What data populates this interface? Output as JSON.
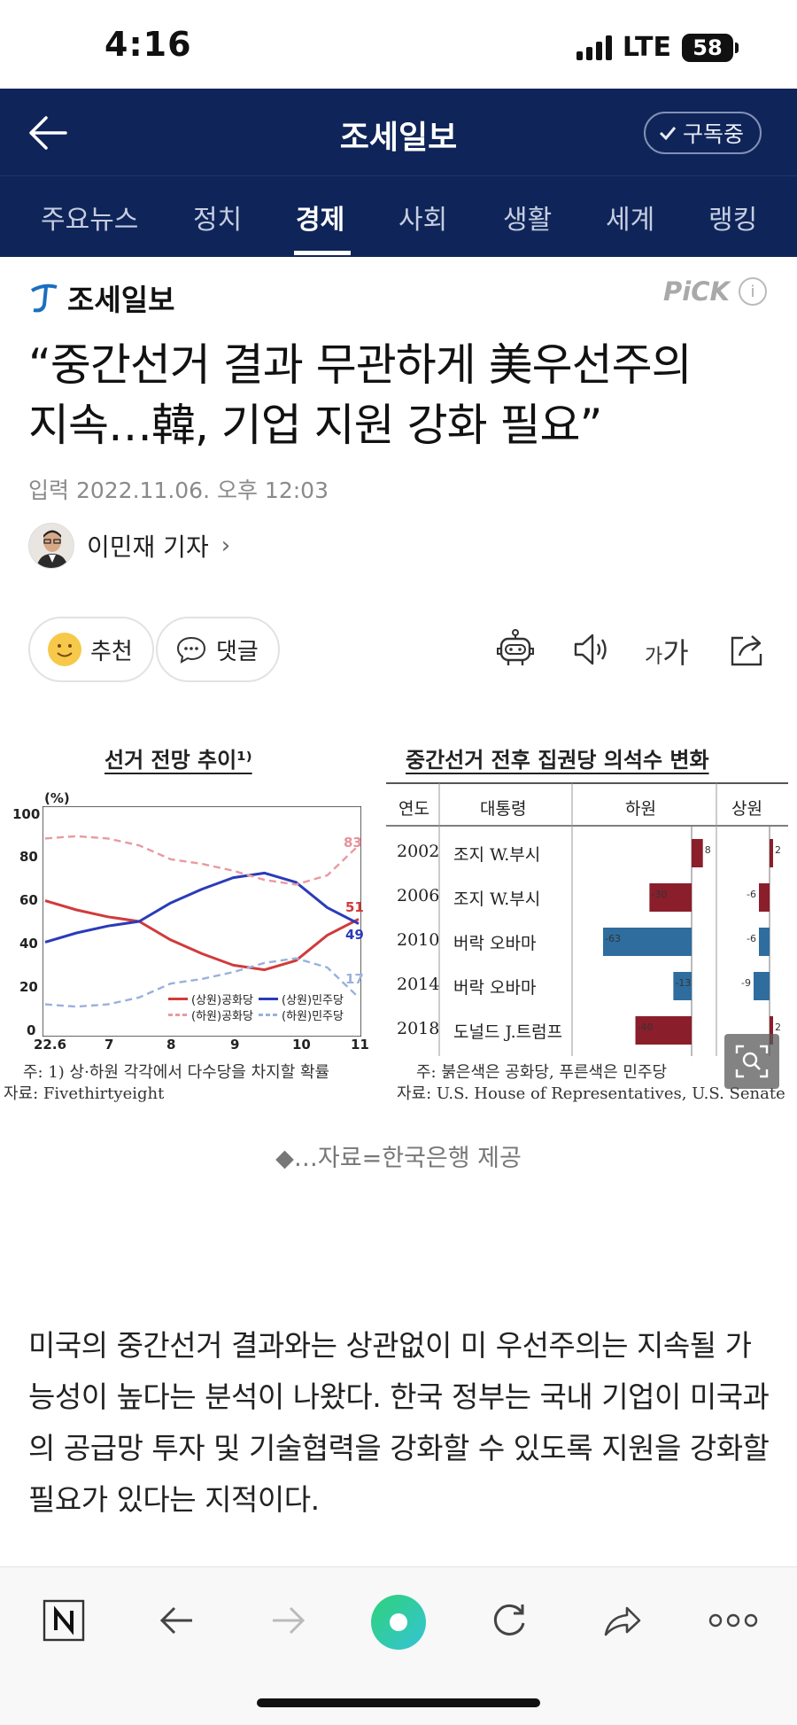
{
  "status": {
    "time": "4:16",
    "network": "LTE",
    "battery": "58"
  },
  "header": {
    "title": "조세일보",
    "subscribe_label": "구독중"
  },
  "tabs": [
    {
      "label": "주요뉴스"
    },
    {
      "label": "정치"
    },
    {
      "label": "경제"
    },
    {
      "label": "사회"
    },
    {
      "label": "생활"
    },
    {
      "label": "세계"
    },
    {
      "label": "랭킹"
    }
  ],
  "active_tab": "경제",
  "article": {
    "press": "조세일보",
    "pick_label": "PiCK",
    "headline_line1": "“중간선거 결과 무관하게 美우선주의",
    "headline_line2": "지속…韓, 기업 지원 강화 필요”",
    "date": "입력 2022.11.06. 오후 12:03",
    "reporter": "이민재 기자",
    "recommend_label": "추천",
    "comment_label": "댓글",
    "caption": "◆…자료=한국은행 제공",
    "body": "미국의 중간선거 결과와는 상관없이 미 우선주의는 지속될 가능성이 높다는 분석이 나왔다. 한국 정부는 국내 기업이 미국과의 공급망 투자 및 기술협력을 강화할 수 있도록 지원을 강화할 필요가 있다는 지적이다."
  },
  "figure": {
    "left_title": "선거 전망 추이¹⁾",
    "left_unit": "(%)",
    "left_note": "주: 1) 상·하원 각각에서 다수당을 차지할 확률",
    "left_source": "자료: Fivethirtyeight",
    "right_title": "중간선거 전후 집권당 의석수 변화",
    "right_note": "주: 붉은색은 공화당, 푸른색은 민주당",
    "right_source": "자료: U.S. House of Representatives, U.S. Senate",
    "table_headers": {
      "year": "연도",
      "president": "대통령",
      "house": "하원",
      "senate": "상원"
    },
    "legend": {
      "senate_rep": "(상원)공화당",
      "senate_dem": "(상원)민주당",
      "house_rep": "(하원)공화당",
      "house_dem": "(하원)민주당"
    },
    "end_labels": {
      "house_rep": "83",
      "senate_rep": "51",
      "senate_dem": "49",
      "house_dem": "17"
    }
  },
  "chart_data": [
    {
      "type": "line",
      "title": "선거 전망 추이¹⁾",
      "ylabel": "(%)",
      "ylim": [
        0,
        100
      ],
      "yticks": [
        "0",
        "20",
        "40",
        "60",
        "80",
        "100"
      ],
      "x_ticks": [
        "22.6",
        "7",
        "8",
        "9",
        "10",
        "11"
      ],
      "x": [
        6.0,
        6.5,
        7.0,
        7.5,
        8.0,
        8.5,
        9.0,
        9.5,
        10.0,
        10.5,
        11.0
      ],
      "series": [
        {
          "name": "(상원)공화당",
          "color": "#d23a3a",
          "style": "solid",
          "values": [
            59,
            55,
            52,
            50,
            42,
            36,
            31,
            29,
            33,
            44,
            51
          ]
        },
        {
          "name": "(상원)민주당",
          "color": "#2a3bb8",
          "style": "solid",
          "values": [
            41,
            45,
            48,
            50,
            58,
            64,
            69,
            71,
            67,
            56,
            49
          ]
        },
        {
          "name": "(하원)공화당",
          "color": "#e89aa0",
          "style": "dashed",
          "values": [
            86,
            87,
            86,
            83,
            77,
            75,
            72,
            68,
            66,
            70,
            83
          ]
        },
        {
          "name": "(하원)민주당",
          "color": "#9bb0dc",
          "style": "dashed",
          "values": [
            14,
            13,
            14,
            17,
            23,
            25,
            28,
            32,
            34,
            30,
            17
          ]
        }
      ],
      "grid": false,
      "legend_position": "bottom-right"
    },
    {
      "type": "bar",
      "title": "중간선거 전후 집권당 의석수 변화",
      "categories": [
        "2002",
        "2006",
        "2010",
        "2014",
        "2018"
      ],
      "presidents": [
        "조지 W.부시",
        "조지 W.부시",
        "버락 오바마",
        "버락 오바마",
        "도널드 J.트럼프"
      ],
      "series": [
        {
          "name": "하원",
          "values": [
            8,
            -30,
            -63,
            -13,
            -40
          ],
          "colors": [
            "#8b1e2b",
            "#8b1e2b",
            "#2f6d9e",
            "#2f6d9e",
            "#8b1e2b"
          ]
        },
        {
          "name": "상원",
          "values": [
            2,
            -6,
            -6,
            -9,
            2
          ],
          "colors": [
            "#8b1e2b",
            "#8b1e2b",
            "#2f6d9e",
            "#2f6d9e",
            "#8b1e2b"
          ]
        }
      ]
    }
  ]
}
